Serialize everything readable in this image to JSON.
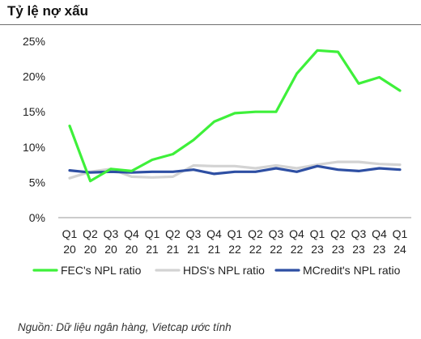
{
  "title": "Tỷ lệ nợ xấu",
  "source": "Nguồn: Dữ liệu ngân hàng, Vietcap ước tính",
  "chart_data": {
    "type": "line",
    "title": "Tỷ lệ nợ xấu",
    "categories": [
      [
        "Q1",
        "20"
      ],
      [
        "Q2",
        "20"
      ],
      [
        "Q3",
        "20"
      ],
      [
        "Q4",
        "20"
      ],
      [
        "Q1",
        "21"
      ],
      [
        "Q2",
        "21"
      ],
      [
        "Q3",
        "21"
      ],
      [
        "Q4",
        "21"
      ],
      [
        "Q1",
        "22"
      ],
      [
        "Q2",
        "22"
      ],
      [
        "Q3",
        "22"
      ],
      [
        "Q4",
        "22"
      ],
      [
        "Q1",
        "23"
      ],
      [
        "Q2",
        "23"
      ],
      [
        "Q3",
        "23"
      ],
      [
        "Q4",
        "23"
      ],
      [
        "Q1",
        "24"
      ]
    ],
    "yticks": [
      "0%",
      "5%",
      "10%",
      "15%",
      "20%",
      "25%"
    ],
    "ylim": [
      0,
      25
    ],
    "grid": false,
    "legend_position": "bottom",
    "series": [
      {
        "name": "FEC's NPL ratio",
        "color": "#3ef03a",
        "values": [
          13.0,
          5.2,
          6.9,
          6.6,
          8.2,
          9.0,
          11.0,
          13.6,
          14.8,
          15.0,
          15.0,
          20.4,
          23.7,
          23.5,
          19.0,
          19.9,
          18.0
        ]
      },
      {
        "name": "HDS's NPL ratio",
        "color": "#d3d3d3",
        "values": [
          5.6,
          6.5,
          6.9,
          5.8,
          5.7,
          5.8,
          7.4,
          7.3,
          7.3,
          7.0,
          7.4,
          7.0,
          7.5,
          7.9,
          7.9,
          7.6,
          7.5
        ]
      },
      {
        "name": "MCredit's NPL ratio",
        "color": "#2e4fa3",
        "values": [
          6.7,
          6.4,
          6.5,
          6.4,
          6.5,
          6.5,
          6.8,
          6.2,
          6.5,
          6.5,
          7.0,
          6.5,
          7.3,
          6.8,
          6.6,
          7.0,
          6.8
        ]
      }
    ]
  }
}
